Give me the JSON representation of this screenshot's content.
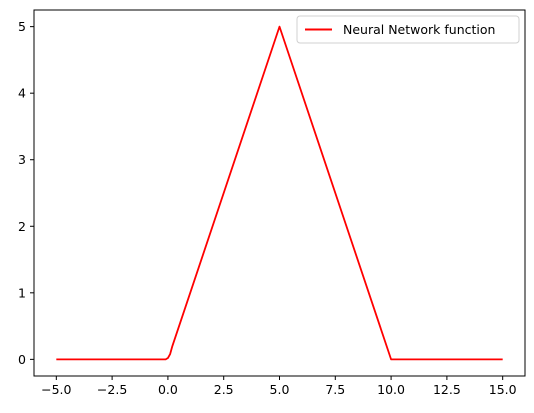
{
  "chart_data": {
    "type": "line",
    "title": "",
    "xlabel": "",
    "ylabel": "",
    "xlim": [
      -6.0,
      16.0
    ],
    "ylim": [
      -0.25,
      5.25
    ],
    "x_ticks": [
      -5.0,
      -2.5,
      0.0,
      2.5,
      5.0,
      7.5,
      10.0,
      12.5,
      15.0
    ],
    "x_tick_labels": [
      "−5.0",
      "−2.5",
      "0.0",
      "2.5",
      "5.0",
      "7.5",
      "10.0",
      "12.5",
      "15.0"
    ],
    "y_ticks": [
      0,
      1,
      2,
      3,
      4,
      5
    ],
    "y_tick_labels": [
      "0",
      "1",
      "2",
      "3",
      "4",
      "5"
    ],
    "grid": false,
    "legend": "top-right",
    "series": [
      {
        "name": "Neural Network function",
        "color": "#ff0000",
        "x": [
          -5.0,
          -0.1,
          0.0,
          0.1,
          0.2,
          5.0,
          10.0,
          15.0
        ],
        "y": [
          0.0,
          0.0,
          0.02,
          0.08,
          0.2,
          5.0,
          0.0,
          0.0
        ]
      }
    ]
  }
}
